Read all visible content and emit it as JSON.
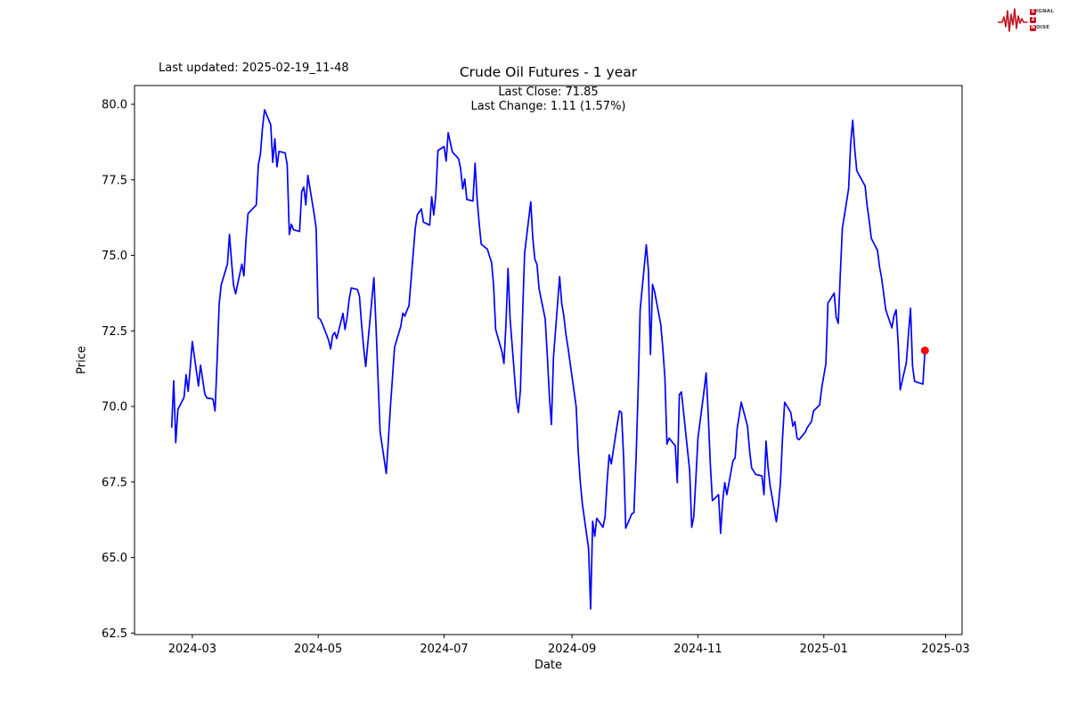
{
  "header": {
    "last_updated": "Last updated: 2025-02-19_11-48",
    "title": "Crude Oil Futures - 1 year",
    "subtitle_close": "Last Close: 71.85",
    "subtitle_change": "Last Change: 1.11 (1.57%)"
  },
  "logo": {
    "waveform_color": "#c0111f",
    "rows": [
      {
        "initial": "S",
        "rest": "ignal"
      },
      {
        "initial": "2",
        "rest": ""
      },
      {
        "initial": "N",
        "rest": "oise"
      }
    ]
  },
  "chart_data": {
    "type": "line",
    "title": "Crude Oil Futures - 1 year",
    "xlabel": "Date",
    "ylabel": "Price",
    "legend": "none",
    "grid": false,
    "line_color": "#0000ff",
    "last_point_color": "#ff0000",
    "axis_color": "#000000",
    "xlim": [
      "2024-02-02",
      "2025-03-09"
    ],
    "ylim": [
      62.45,
      80.62
    ],
    "y_ticks": [
      {
        "value": 62.5,
        "label": "62.5"
      },
      {
        "value": 65.0,
        "label": "65.0"
      },
      {
        "value": 67.5,
        "label": "67.5"
      },
      {
        "value": 70.0,
        "label": "70.0"
      },
      {
        "value": 72.5,
        "label": "72.5"
      },
      {
        "value": 75.0,
        "label": "75.0"
      },
      {
        "value": 77.5,
        "label": "77.5"
      },
      {
        "value": 80.0,
        "label": "80.0"
      }
    ],
    "x_ticks": [
      {
        "date": "2024-03-01",
        "label": "2024-03"
      },
      {
        "date": "2024-05-01",
        "label": "2024-05"
      },
      {
        "date": "2024-07-01",
        "label": "2024-07"
      },
      {
        "date": "2024-09-01",
        "label": "2024-09"
      },
      {
        "date": "2024-11-01",
        "label": "2024-11"
      },
      {
        "date": "2025-01-01",
        "label": "2025-01"
      },
      {
        "date": "2025-03-01",
        "label": "2025-03"
      }
    ],
    "last_close": 71.85,
    "last_change": 1.11,
    "last_change_pct": 1.57,
    "series": [
      {
        "name": "Crude Oil Futures",
        "dates": [
          "2024-02-20",
          "2024-02-21",
          "2024-02-22",
          "2024-02-23",
          "2024-02-26",
          "2024-02-27",
          "2024-02-28",
          "2024-02-29",
          "2024-03-01",
          "2024-03-04",
          "2024-03-05",
          "2024-03-06",
          "2024-03-07",
          "2024-03-08",
          "2024-03-11",
          "2024-03-12",
          "2024-03-13",
          "2024-03-14",
          "2024-03-15",
          "2024-03-18",
          "2024-03-19",
          "2024-03-20",
          "2024-03-21",
          "2024-03-22",
          "2024-03-25",
          "2024-03-26",
          "2024-03-27",
          "2024-03-28",
          "2024-04-01",
          "2024-04-02",
          "2024-04-03",
          "2024-04-04",
          "2024-04-05",
          "2024-04-08",
          "2024-04-09",
          "2024-04-10",
          "2024-04-11",
          "2024-04-12",
          "2024-04-15",
          "2024-04-16",
          "2024-04-17",
          "2024-04-18",
          "2024-04-19",
          "2024-04-22",
          "2024-04-23",
          "2024-04-24",
          "2024-04-25",
          "2024-04-26",
          "2024-04-29",
          "2024-04-30",
          "2024-05-01",
          "2024-05-02",
          "2024-05-03",
          "2024-05-06",
          "2024-05-07",
          "2024-05-08",
          "2024-05-09",
          "2024-05-10",
          "2024-05-13",
          "2024-05-14",
          "2024-05-15",
          "2024-05-16",
          "2024-05-17",
          "2024-05-20",
          "2024-05-21",
          "2024-05-22",
          "2024-05-23",
          "2024-05-24",
          "2024-05-28",
          "2024-05-29",
          "2024-05-30",
          "2024-05-31",
          "2024-06-03",
          "2024-06-04",
          "2024-06-05",
          "2024-06-06",
          "2024-06-07",
          "2024-06-10",
          "2024-06-11",
          "2024-06-12",
          "2024-06-13",
          "2024-06-14",
          "2024-06-17",
          "2024-06-18",
          "2024-06-20",
          "2024-06-21",
          "2024-06-24",
          "2024-06-25",
          "2024-06-26",
          "2024-06-27",
          "2024-06-28",
          "2024-07-01",
          "2024-07-02",
          "2024-07-03",
          "2024-07-05",
          "2024-07-08",
          "2024-07-09",
          "2024-07-10",
          "2024-07-11",
          "2024-07-12",
          "2024-07-15",
          "2024-07-16",
          "2024-07-17",
          "2024-07-18",
          "2024-07-19",
          "2024-07-22",
          "2024-07-23",
          "2024-07-24",
          "2024-07-25",
          "2024-07-26",
          "2024-07-29",
          "2024-07-30",
          "2024-07-31",
          "2024-08-01",
          "2024-08-02",
          "2024-08-05",
          "2024-08-06",
          "2024-08-07",
          "2024-08-08",
          "2024-08-09",
          "2024-08-12",
          "2024-08-13",
          "2024-08-14",
          "2024-08-15",
          "2024-08-16",
          "2024-08-19",
          "2024-08-20",
          "2024-08-21",
          "2024-08-22",
          "2024-08-23",
          "2024-08-26",
          "2024-08-27",
          "2024-08-28",
          "2024-08-29",
          "2024-08-30",
          "2024-09-03",
          "2024-09-04",
          "2024-09-05",
          "2024-09-06",
          "2024-09-09",
          "2024-09-10",
          "2024-09-11",
          "2024-09-12",
          "2024-09-13",
          "2024-09-16",
          "2024-09-17",
          "2024-09-18",
          "2024-09-19",
          "2024-09-20",
          "2024-09-23",
          "2024-09-24",
          "2024-09-25",
          "2024-09-26",
          "2024-09-27",
          "2024-09-30",
          "2024-10-01",
          "2024-10-02",
          "2024-10-03",
          "2024-10-04",
          "2024-10-07",
          "2024-10-08",
          "2024-10-09",
          "2024-10-10",
          "2024-10-11",
          "2024-10-14",
          "2024-10-15",
          "2024-10-16",
          "2024-10-17",
          "2024-10-18",
          "2024-10-21",
          "2024-10-22",
          "2024-10-23",
          "2024-10-24",
          "2024-10-25",
          "2024-10-28",
          "2024-10-29",
          "2024-10-30",
          "2024-10-31",
          "2024-11-01",
          "2024-11-04",
          "2024-11-05",
          "2024-11-06",
          "2024-11-07",
          "2024-11-08",
          "2024-11-11",
          "2024-11-12",
          "2024-11-13",
          "2024-11-14",
          "2024-11-15",
          "2024-11-18",
          "2024-11-19",
          "2024-11-20",
          "2024-11-21",
          "2024-11-22",
          "2024-11-25",
          "2024-11-26",
          "2024-11-27",
          "2024-11-29",
          "2024-12-02",
          "2024-12-03",
          "2024-12-04",
          "2024-12-05",
          "2024-12-06",
          "2024-12-09",
          "2024-12-10",
          "2024-12-11",
          "2024-12-12",
          "2024-12-13",
          "2024-12-16",
          "2024-12-17",
          "2024-12-18",
          "2024-12-19",
          "2024-12-20",
          "2024-12-23",
          "2024-12-24",
          "2024-12-26",
          "2024-12-27",
          "2024-12-30",
          "2024-12-31",
          "2025-01-02",
          "2025-01-03",
          "2025-01-06",
          "2025-01-07",
          "2025-01-08",
          "2025-01-09",
          "2025-01-10",
          "2025-01-13",
          "2025-01-14",
          "2025-01-15",
          "2025-01-16",
          "2025-01-17",
          "2025-01-21",
          "2025-01-22",
          "2025-01-23",
          "2025-01-24",
          "2025-01-27",
          "2025-01-28",
          "2025-01-29",
          "2025-01-30",
          "2025-01-31",
          "2025-02-03",
          "2025-02-04",
          "2025-02-05",
          "2025-02-06",
          "2025-02-07",
          "2025-02-10",
          "2025-02-11",
          "2025-02-12",
          "2025-02-13",
          "2025-02-14",
          "2025-02-18",
          "2025-02-19"
        ],
        "prices": [
          69.3,
          70.85,
          68.8,
          69.9,
          70.3,
          71.05,
          70.5,
          71.3,
          72.15,
          70.68,
          71.37,
          70.9,
          70.43,
          70.28,
          70.25,
          69.85,
          71.5,
          73.38,
          74.02,
          74.71,
          75.69,
          74.8,
          74.0,
          73.73,
          74.71,
          74.32,
          75.5,
          76.38,
          76.67,
          78.0,
          78.34,
          79.2,
          79.82,
          79.32,
          78.08,
          78.86,
          77.93,
          78.44,
          78.39,
          78.0,
          75.69,
          76.03,
          75.85,
          75.79,
          77.11,
          77.26,
          76.67,
          77.65,
          76.38,
          75.89,
          72.94,
          72.88,
          72.74,
          72.2,
          71.9,
          72.35,
          72.45,
          72.25,
          73.08,
          72.55,
          72.94,
          73.53,
          73.92,
          73.87,
          73.65,
          72.74,
          71.96,
          71.32,
          74.26,
          72.65,
          70.88,
          69.16,
          67.78,
          68.9,
          70.0,
          70.97,
          71.96,
          72.65,
          73.09,
          72.99,
          73.18,
          73.33,
          75.89,
          76.34,
          76.54,
          76.1,
          76.0,
          76.94,
          76.34,
          77.0,
          78.47,
          78.6,
          78.12,
          79.06,
          78.42,
          78.2,
          77.88,
          77.2,
          77.53,
          76.85,
          76.8,
          78.05,
          76.85,
          76.06,
          75.37,
          75.2,
          74.97,
          74.77,
          74.0,
          72.55,
          71.82,
          71.42,
          72.75,
          74.57,
          72.9,
          70.24,
          69.8,
          70.54,
          72.9,
          75.07,
          76.77,
          75.56,
          74.87,
          74.7,
          73.9,
          72.9,
          71.72,
          70.34,
          69.4,
          71.62,
          74.3,
          73.4,
          73.0,
          72.4,
          71.97,
          69.99,
          68.5,
          67.5,
          66.78,
          65.3,
          63.3,
          66.2,
          65.7,
          66.3,
          66.0,
          66.35,
          67.5,
          68.4,
          68.1,
          69.45,
          69.85,
          69.8,
          68.27,
          65.97,
          66.45,
          66.48,
          68.27,
          70.5,
          73.2,
          75.35,
          74.5,
          71.72,
          74.04,
          73.8,
          72.7,
          71.9,
          70.93,
          68.75,
          68.95,
          68.7,
          67.48,
          70.39,
          70.48,
          69.85,
          67.87,
          66.0,
          66.35,
          67.58,
          68.95,
          70.54,
          71.11,
          69.75,
          68.07,
          66.88,
          67.08,
          65.8,
          66.88,
          67.48,
          67.08,
          68.2,
          68.3,
          69.26,
          69.7,
          70.14,
          69.35,
          68.56,
          67.97,
          67.75,
          67.7,
          67.08,
          68.85,
          67.97,
          67.38,
          66.18,
          66.73,
          67.48,
          68.95,
          70.14,
          69.8,
          69.35,
          69.5,
          68.95,
          68.9,
          69.15,
          69.3,
          69.5,
          69.85,
          70.05,
          70.63,
          71.42,
          73.42,
          73.75,
          72.95,
          72.75,
          74.4,
          75.9,
          77.2,
          78.7,
          79.47,
          78.5,
          77.8,
          77.3,
          76.65,
          76.16,
          75.56,
          75.17,
          74.63,
          74.26,
          73.72,
          73.2,
          72.6,
          73.0,
          73.2,
          72.12,
          70.55,
          71.45,
          72.4,
          73.25,
          71.33,
          70.83,
          70.74,
          71.85
        ]
      }
    ]
  },
  "layout_note": ""
}
